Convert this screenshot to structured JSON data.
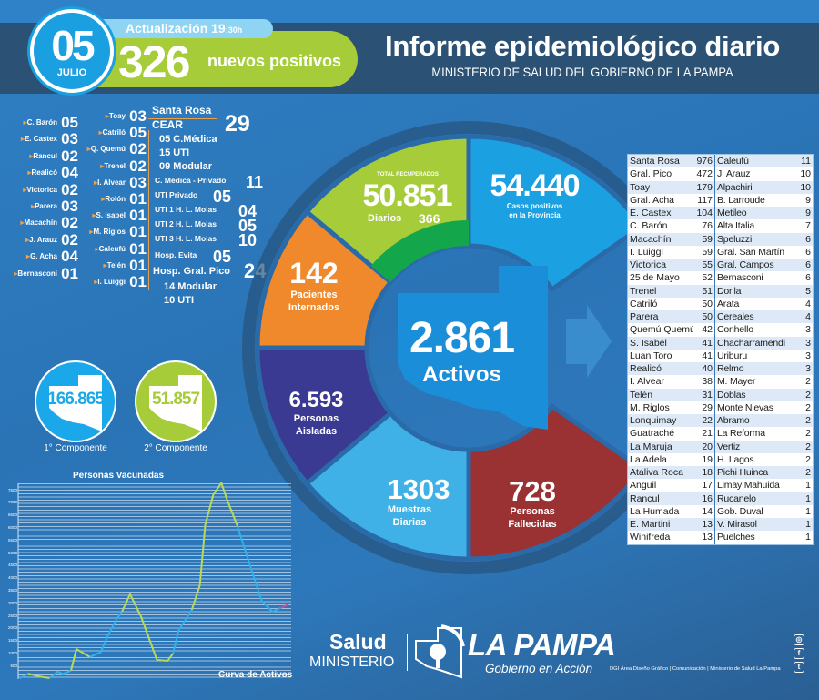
{
  "header": {
    "day": "05",
    "month": "JULIO",
    "update_label": "Actualización 19",
    "update_time_suffix": ":30h",
    "new_positives": "326",
    "new_positives_label": "nuevos positivos",
    "title": "Informe epidemiológico diario",
    "subtitle": "MINISTERIO DE SALUD DEL GOBIERNO DE LA PAMPA"
  },
  "localities_col1": [
    {
      "name": "C. Barón",
      "value": "05"
    },
    {
      "name": "E. Castex",
      "value": "03"
    },
    {
      "name": "Rancul",
      "value": "02"
    },
    {
      "name": "Realicó",
      "value": "04"
    },
    {
      "name": "Victorica",
      "value": "02"
    },
    {
      "name": "Parera",
      "value": "03"
    },
    {
      "name": "Macachín",
      "value": "02"
    },
    {
      "name": "J. Arauz",
      "value": "02"
    },
    {
      "name": "G. Acha",
      "value": "04"
    },
    {
      "name": "Bernasconi",
      "value": "01"
    }
  ],
  "localities_col2": [
    {
      "name": "Toay",
      "value": "03"
    },
    {
      "name": "Catriló",
      "value": "05"
    },
    {
      "name": "Q. Quemú",
      "value": "02"
    },
    {
      "name": "Trenel",
      "value": "02"
    },
    {
      "name": "I. Alvear",
      "value": "03"
    },
    {
      "name": "Rolón",
      "value": "01"
    },
    {
      "name": "S. Isabel",
      "value": "01"
    },
    {
      "name": "M. Riglos",
      "value": "01"
    },
    {
      "name": "Caleufú",
      "value": "01"
    },
    {
      "name": "Telén",
      "value": "01"
    },
    {
      "name": "I. Luiggi",
      "value": "01"
    }
  ],
  "santa_rosa": {
    "title": "Santa Rosa",
    "cear_label": "CEAR",
    "cear_value": "29",
    "cear_breakdown": [
      "05 C.Médica",
      "15 UTI",
      "09 Modular"
    ],
    "items": [
      {
        "name": "C. Médica - Privado",
        "value": "11"
      },
      {
        "name": "UTI Privado",
        "value": "05"
      },
      {
        "name": "UTI 1 H. L. Molas",
        "value": "04"
      },
      {
        "name": "UTI 2 H. L. Molas",
        "value": "05"
      },
      {
        "name": "UTI 3 H. L. Molas",
        "value": "10"
      },
      {
        "name": "Hosp. Evita",
        "value": "05"
      }
    ],
    "pico_label": "Hosp. Gral. Pico",
    "pico_value": "24",
    "pico_breakdown": [
      "14 Modular",
      "10 UTI"
    ]
  },
  "donut": {
    "recuperados": {
      "caption": "TOTAL RECUPERADOS",
      "value": "50.851",
      "daily_label": "Diarios",
      "daily_value": "366",
      "color": "#a6cc3a"
    },
    "positivos": {
      "value": "54.440",
      "label1": "Casos positivos",
      "label2": "en la Provincia",
      "color": "#1ba0e2"
    },
    "internados": {
      "value": "142",
      "label1": "Pacientes",
      "label2": "Internados",
      "color": "#f0892b"
    },
    "aislados": {
      "value": "6.593",
      "label1": "Personas",
      "label2": "Aisladas",
      "color": "#3b3a92"
    },
    "muestras": {
      "value": "1303",
      "label1": "Muestras",
      "label2": "Diarias",
      "color": "#3fb1e6"
    },
    "fallecidos": {
      "value": "728",
      "label1": "Personas",
      "label2": "Fallecidas",
      "color": "#9a3234"
    },
    "activos": {
      "value": "2.861",
      "label": "Activos"
    }
  },
  "table": {
    "rows": [
      [
        "Santa Rosa",
        "976",
        "Caleufú",
        "11"
      ],
      [
        "Gral. Pico",
        "472",
        "J. Arauz",
        "10"
      ],
      [
        "Toay",
        "179",
        "Alpachiri",
        "10"
      ],
      [
        "Gral. Acha",
        "117",
        "B. Larroude",
        "9"
      ],
      [
        "E. Castex",
        "104",
        "Metileo",
        "9"
      ],
      [
        "C. Barón",
        "76",
        "Alta Italia",
        "7"
      ],
      [
        "Macachín",
        "59",
        "Speluzzi",
        "6"
      ],
      [
        "I. Luiggi",
        "59",
        "Gral. San Martín",
        "6"
      ],
      [
        "Victorica",
        "55",
        "Gral. Campos",
        "6"
      ],
      [
        "25 de Mayo",
        "52",
        "Bernasconi",
        "6"
      ],
      [
        "Trenel",
        "51",
        "Dorila",
        "5"
      ],
      [
        "Catriló",
        "50",
        "Arata",
        "4"
      ],
      [
        "Parera",
        "50",
        "Cereales",
        "4"
      ],
      [
        "Quemú Quemú",
        "42",
        "Conhello",
        "3"
      ],
      [
        "S. Isabel",
        "41",
        "Chacharramendi",
        "3"
      ],
      [
        "Luan Toro",
        "41",
        "Uriburu",
        "3"
      ],
      [
        "Realicó",
        "40",
        "Relmo",
        "3"
      ],
      [
        "I. Alvear",
        "38",
        "M. Mayer",
        "2"
      ],
      [
        "Telén",
        "31",
        "Doblas",
        "2"
      ],
      [
        "M. Riglos",
        "29",
        "Monte Nievas",
        "2"
      ],
      [
        "Lonquimay",
        "22",
        "Abramo",
        "2"
      ],
      [
        "Guatraché",
        "21",
        "La Reforma",
        "2"
      ],
      [
        "La Maruja",
        "20",
        "Vertiz",
        "2"
      ],
      [
        "La Adela",
        "19",
        "H. Lagos",
        "2"
      ],
      [
        "Ataliva Roca",
        "18",
        "Pichi Huinca",
        "2"
      ],
      [
        "Anguil",
        "17",
        "Limay Mahuida",
        "1"
      ],
      [
        "Rancul",
        "16",
        "Rucanelo",
        "1"
      ],
      [
        "La Humada",
        "14",
        "Gob. Duval",
        "1"
      ],
      [
        "E. Martini",
        "13",
        "V. Mirasol",
        "1"
      ],
      [
        "Winifreda",
        "13",
        "Puelches",
        "1"
      ]
    ]
  },
  "vaccination": {
    "first": {
      "value": "166.865",
      "label": "1° Componente",
      "color": "#1ba8ea"
    },
    "second": {
      "value": "51.857",
      "label": "2° Componente",
      "color": "#a6cc3a"
    }
  },
  "chart_data": {
    "type": "line",
    "title": "Personas Vacunadas",
    "annotation": "Curva de Activos",
    "ylim": [
      0,
      7500
    ],
    "yticks": [
      500,
      1000,
      1500,
      2000,
      2500,
      3000,
      3500,
      4000,
      4500,
      5000,
      5500,
      6000,
      6500,
      7000,
      7500
    ],
    "grid": true,
    "segments": [
      {
        "color": "#2fb2ea",
        "x": [
          0,
          3
        ],
        "y": [
          0,
          180
        ]
      },
      {
        "color": "#b9d957",
        "x": [
          3,
          7,
          11
        ],
        "y": [
          180,
          70,
          0
        ]
      },
      {
        "color": "#2fb2ea",
        "x": [
          11,
          14,
          16,
          19
        ],
        "y": [
          0,
          260,
          170,
          300
        ]
      },
      {
        "color": "#b9d957",
        "x": [
          19,
          21,
          26
        ],
        "y": [
          300,
          1160,
          840
        ]
      },
      {
        "color": "#2fb2ea",
        "x": [
          26,
          30,
          33,
          36,
          38
        ],
        "y": [
          840,
          1025,
          1750,
          2355,
          2650
        ]
      },
      {
        "color": "#b9d957",
        "x": [
          38,
          41,
          45,
          51
        ],
        "y": [
          2650,
          3340,
          2475,
          725
        ]
      },
      {
        "color": "#b9d957",
        "x": [
          51,
          55,
          57
        ],
        "y": [
          725,
          690,
          980
        ]
      },
      {
        "color": "#2fb2ea",
        "x": [
          57,
          59,
          64
        ],
        "y": [
          980,
          1880,
          2720
        ]
      },
      {
        "color": "#b9d957",
        "x": [
          64,
          67,
          69,
          72,
          75,
          77,
          81
        ],
        "y": [
          2720,
          3700,
          6100,
          7300,
          7770,
          7140,
          6050
        ]
      },
      {
        "color": "#2fb2ea",
        "x": [
          81,
          87,
          90,
          94,
          97
        ],
        "y": [
          6050,
          4060,
          3080,
          2650,
          2790
        ]
      },
      {
        "color": "#c0509a",
        "x": [
          97,
          100
        ],
        "y": [
          2790,
          2930
        ]
      }
    ]
  },
  "footer": {
    "salud": "Salud",
    "ministerio": "MINISTERIO",
    "brand": "LA PAMPA",
    "tagline": "Gobierno en Acción",
    "credit": "DGI Área Diseño Gráfico  | Comunicación | Ministerio de Salud La Pampa",
    "social": [
      "instagram-icon",
      "facebook-icon",
      "twitter-icon"
    ]
  }
}
